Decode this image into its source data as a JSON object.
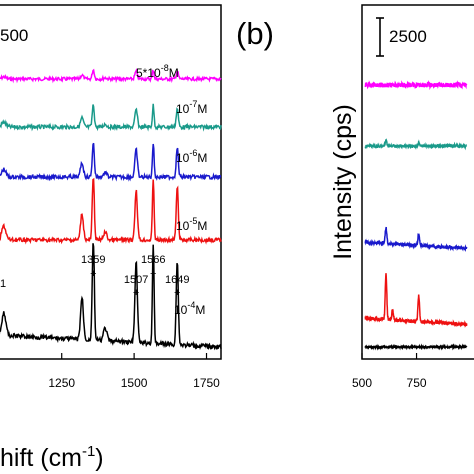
{
  "chart_data": [
    {
      "type": "line",
      "panel": "a",
      "title": "",
      "xlabel": "hift (cm⁻¹)",
      "ylabel": "",
      "xlim": [
        1030,
        1800
      ],
      "x_ticks": [
        1250,
        1500,
        1750
      ],
      "x_tick_labels": [
        "1250",
        "1500",
        "1750"
      ],
      "scale_bar_label": "500",
      "grid": false,
      "peaks": [
        {
          "x": 1359,
          "label": "1359",
          "mark": "+"
        },
        {
          "x": 1507,
          "label": "1507",
          "mark": "+"
        },
        {
          "x": 1566,
          "label": "1566",
          "mark": "+"
        },
        {
          "x": 1649,
          "label": "1649",
          "mark": "+"
        }
      ],
      "partial_peak_label": "1",
      "series": [
        {
          "name": "5*10⁻⁸M",
          "color": "#ff00ff",
          "amplitude": 0.15,
          "noise": 1.6
        },
        {
          "name": "10⁻⁷M",
          "color": "#1a9a8a",
          "amplitude": 0.35,
          "noise": 1.9
        },
        {
          "name": "10⁻⁶M",
          "color": "#1a1acc",
          "amplitude": 0.55,
          "noise": 1.9
        },
        {
          "name": "10⁻⁵M",
          "color": "#ee1111",
          "amplitude": 1.0,
          "noise": 2.0
        },
        {
          "name": "10⁻⁴M",
          "color": "#000000",
          "amplitude": 1.6,
          "noise": 2.2
        }
      ]
    },
    {
      "type": "line",
      "panel": "b",
      "title": "",
      "xlabel": "",
      "ylabel": "Intensity (cps)",
      "xlim": [
        500,
        1050
      ],
      "x_ticks": [
        500,
        750
      ],
      "x_tick_labels": [
        "500",
        "750"
      ],
      "scale_bar_label": "2500",
      "grid": false,
      "series": [
        {
          "color": "#ff00ff",
          "peaks": [],
          "noise": 2.4
        },
        {
          "color": "#1a9a8a",
          "peaks": [
            {
              "x": 610,
              "h": 5
            },
            {
              "x": 760,
              "h": 4
            }
          ],
          "noise": 1.6
        },
        {
          "color": "#1a1acc",
          "peaks": [
            {
              "x": 610,
              "h": 16
            },
            {
              "x": 760,
              "h": 12
            }
          ],
          "noise": 1.6
        },
        {
          "color": "#ee1111",
          "peaks": [
            {
              "x": 610,
              "h": 45
            },
            {
              "x": 640,
              "h": 10
            },
            {
              "x": 760,
              "h": 26
            }
          ],
          "noise": 1.8
        },
        {
          "color": "#000000",
          "peaks": [],
          "noise": 1.0
        }
      ]
    }
  ],
  "panel_letters": {
    "b": "(b)"
  },
  "concentration_labels": {
    "c1": {
      "base": "5*10",
      "exp": "-8",
      "unit": "M"
    },
    "c2": {
      "base": "10",
      "exp": "-7",
      "unit": "M"
    },
    "c3": {
      "base": "10",
      "exp": "-6",
      "unit": "M"
    },
    "c4": {
      "base": "10",
      "exp": "-5",
      "unit": "M"
    },
    "c5": {
      "base": "10",
      "exp": "-4",
      "unit": "M"
    }
  },
  "axis_title_a": {
    "text": "hift (cm",
    "exp": "-1",
    "close": ")"
  }
}
